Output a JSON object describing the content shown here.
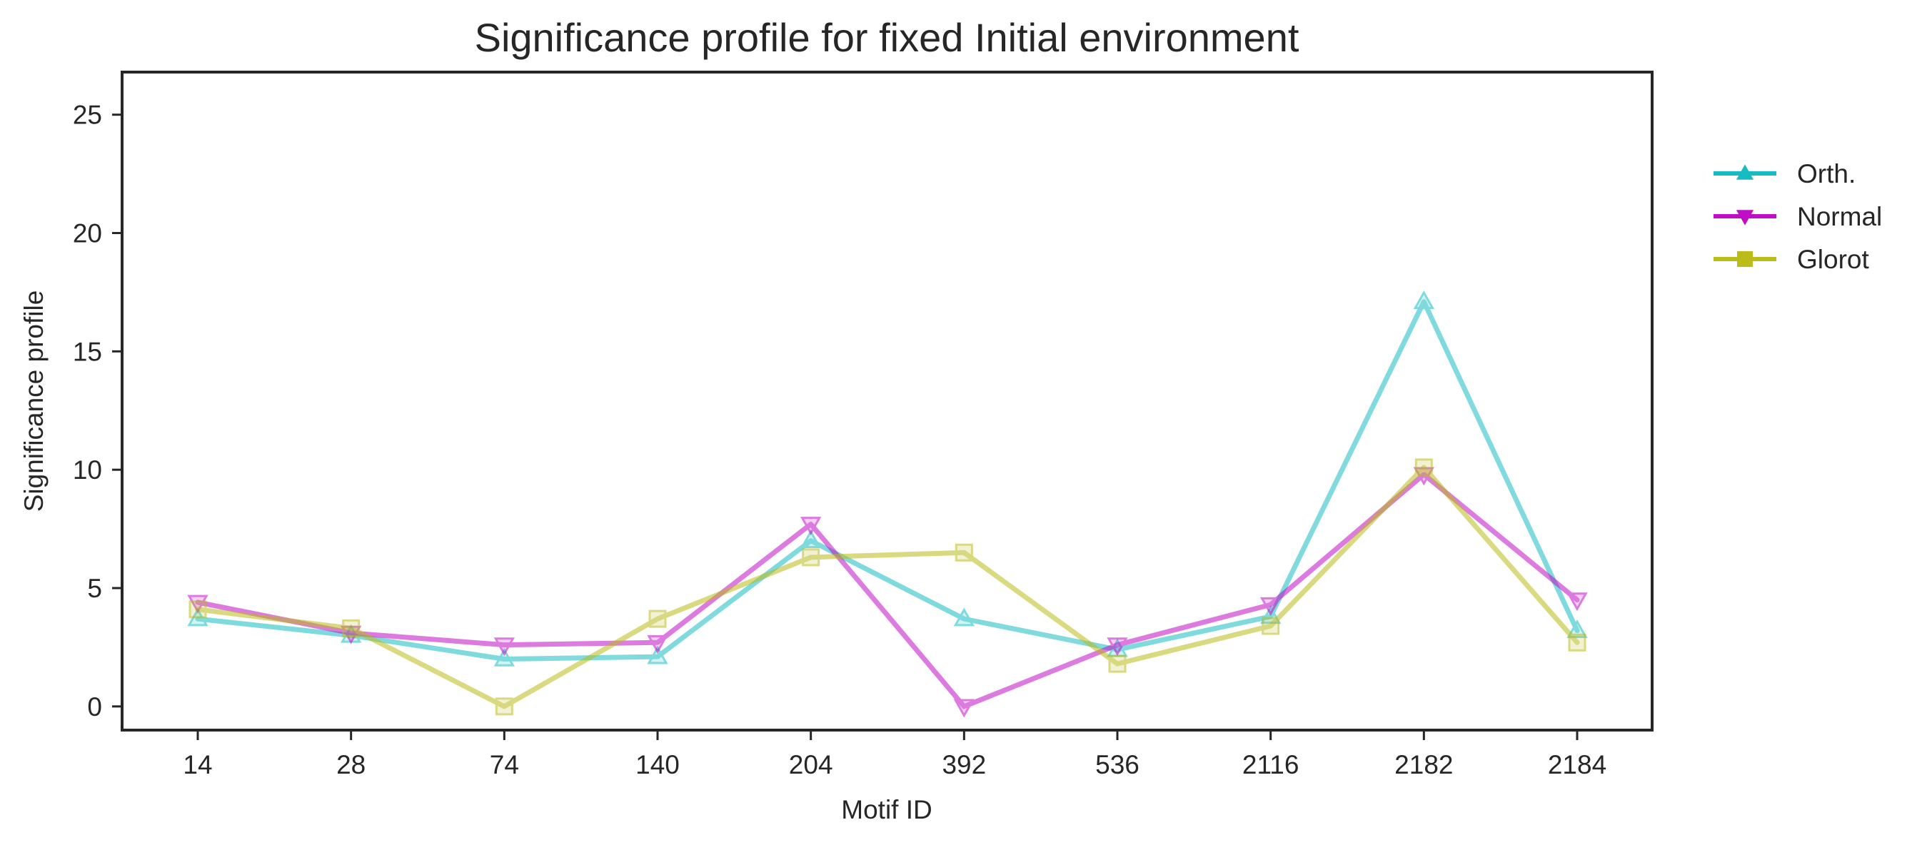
{
  "chart_data": {
    "type": "line",
    "title": "Significance profile for fixed Initial environment",
    "xlabel": "Motif ID",
    "ylabel": "Significance profile",
    "categories": [
      "14",
      "28",
      "74",
      "140",
      "204",
      "392",
      "536",
      "2116",
      "2182",
      "2184"
    ],
    "yticks": [
      0,
      5,
      10,
      15,
      20,
      25
    ],
    "ylim": [
      -1,
      26.8
    ],
    "grid": false,
    "legend_position": "right, outside the plot area (upper)",
    "series": [
      {
        "name": "Orth.",
        "color": "#17bcc2",
        "marker": "triangle-up",
        "values": [
          3.7,
          3.0,
          2.0,
          2.1,
          7.0,
          3.7,
          2.4,
          3.8,
          17.1,
          3.2
        ]
      },
      {
        "name": "Normal",
        "color": "#c00ec7",
        "marker": "triangle-down",
        "values": [
          4.4,
          3.1,
          2.6,
          2.7,
          7.7,
          0.0,
          2.6,
          4.3,
          9.8,
          4.5
        ]
      },
      {
        "name": "Glorot",
        "color": "#bbbb1a",
        "marker": "square",
        "values": [
          4.1,
          3.3,
          0.0,
          3.7,
          6.3,
          6.5,
          1.8,
          3.4,
          10.1,
          2.7
        ]
      }
    ]
  }
}
